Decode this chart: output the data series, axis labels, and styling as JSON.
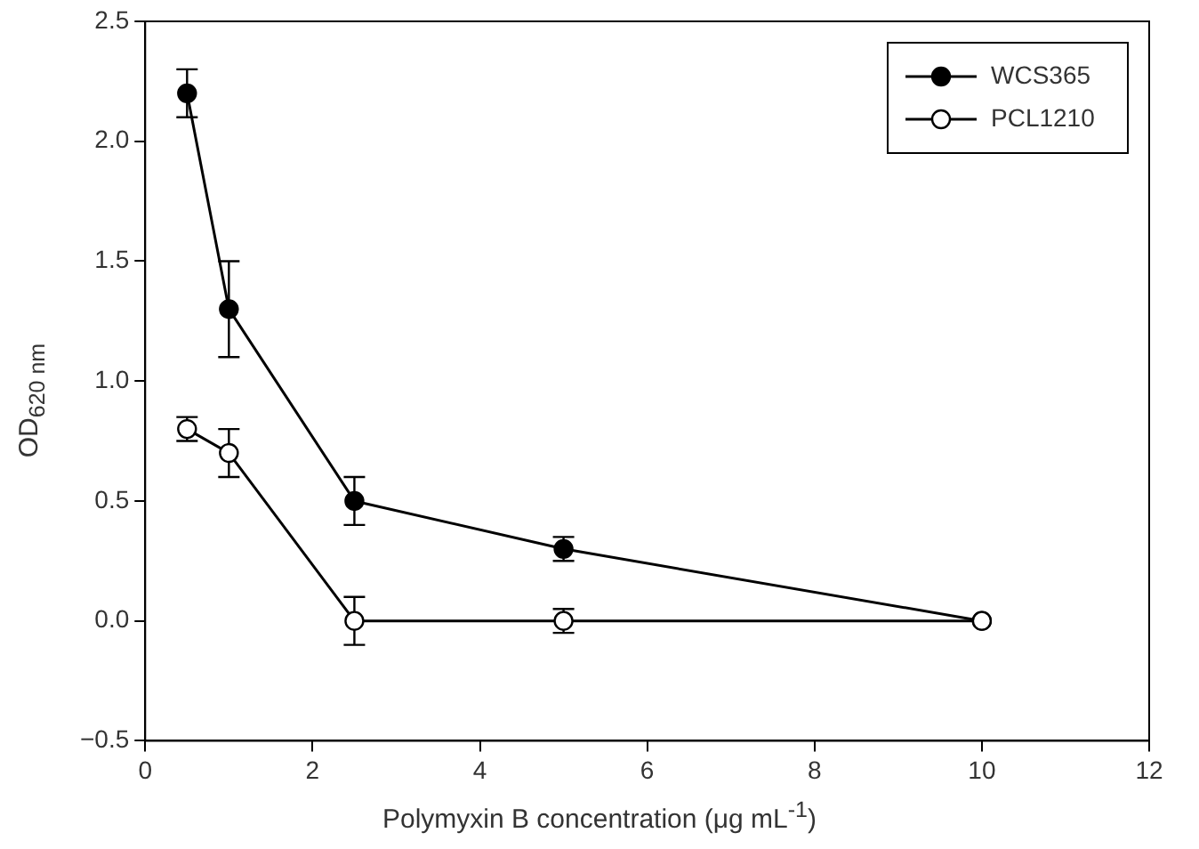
{
  "chart_data": {
    "type": "line",
    "xlabel": "Polymyxin B concentration (μg mL$^{-1}$)",
    "ylabel": "OD$_{620 nm}$",
    "x": [
      0.5,
      1,
      2.5,
      5,
      10
    ],
    "series": [
      {
        "name": "WCS365",
        "color": "#000000",
        "values": [
          2.2,
          1.3,
          0.5,
          0.3,
          0.0
        ],
        "errors": [
          0.1,
          0.2,
          0.1,
          0.05,
          null
        ]
      },
      {
        "name": "PCL1210",
        "color": "#000000",
        "values": [
          0.8,
          0.7,
          0.0,
          0.0,
          0.0
        ],
        "errors": [
          0.05,
          0.1,
          0.1,
          0.05,
          null
        ]
      }
    ],
    "xlim": [
      0,
      12
    ],
    "xticks": [
      0,
      2,
      4,
      6,
      8,
      10,
      12
    ],
    "ylim": [
      -0.5,
      2.5
    ],
    "yticks": [
      {
        "value": -0.5,
        "label": "−0.5"
      },
      {
        "value": 0,
        "label": "0.0"
      },
      {
        "value": 0.5,
        "label": "0.5"
      },
      {
        "value": 1,
        "label": "1.0"
      },
      {
        "value": 1.5,
        "label": "1.5"
      },
      {
        "value": 2,
        "label": "2.0"
      },
      {
        "value": 2.5,
        "label": "2.5"
      }
    ],
    "grid": false,
    "legend": "top right",
    "marker": "circle",
    "line_style": "solid"
  }
}
